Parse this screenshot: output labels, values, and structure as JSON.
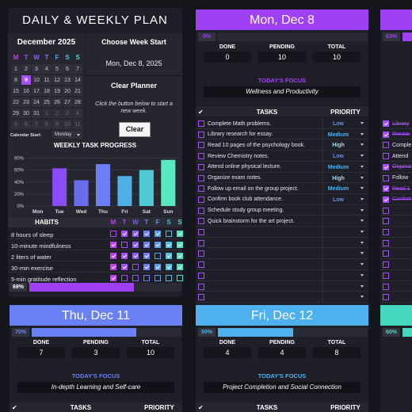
{
  "title": "DAILY & WEEKLY PLAN",
  "week_colors": [
    "#c040f0",
    "#a64dff",
    "#8a5cf5",
    "#6b7ff5",
    "#5a9cf0",
    "#4fc0e0",
    "#4fe0c0"
  ],
  "calendar": {
    "month": "December 2025",
    "weekdays": [
      "M",
      "T",
      "W",
      "T",
      "F",
      "S",
      "S"
    ],
    "highlight": 9,
    "weeks": [
      [
        1,
        2,
        3,
        4,
        5,
        6,
        7
      ],
      [
        8,
        9,
        10,
        11,
        12,
        13,
        14
      ],
      [
        15,
        16,
        17,
        18,
        19,
        20,
        21
      ],
      [
        22,
        23,
        24,
        25,
        26,
        27,
        28
      ],
      [
        29,
        30,
        31,
        1,
        2,
        3,
        4
      ],
      [
        5,
        6,
        7,
        8,
        9,
        10,
        11
      ]
    ],
    "start_label": "Calendar Start:",
    "start": "Monday"
  },
  "week_start": {
    "label": "Choose Week Start",
    "value": "Mon, Dec 8, 2025"
  },
  "clear": {
    "title": "Clear Planner",
    "note": "Click the button below to start a new week.",
    "button": "Clear"
  },
  "chart_data": {
    "type": "bar",
    "title": "WEEKLY TASK PROGRESS",
    "categories": [
      "Mon",
      "Tue",
      "Wed",
      "Thu",
      "Fri",
      "Sat",
      "Sun"
    ],
    "values": [
      0,
      63,
      43,
      70,
      50,
      60,
      77
    ],
    "colors": [
      "#9b3cf5",
      "#8a4cf5",
      "#6a6cf0",
      "#6a7ff5",
      "#4fb0e8",
      "#4fc8d8",
      "#5ae8c0"
    ],
    "ylim": [
      0,
      90
    ],
    "yticks": [
      {
        "value": 0,
        "label": "0%"
      },
      {
        "value": 20,
        "label": "20%"
      },
      {
        "value": 40,
        "label": "40%"
      },
      {
        "value": 60,
        "label": "60%"
      },
      {
        "value": 80,
        "label": "80%"
      }
    ],
    "grid": true
  },
  "habits": {
    "header": "HABITS",
    "days": [
      "M",
      "T",
      "W",
      "T",
      "F",
      "S",
      "S"
    ],
    "rows": [
      {
        "name": "8 hours of sleep",
        "checks": [
          false,
          true,
          true,
          true,
          true,
          false,
          true
        ]
      },
      {
        "name": "10-minute mindfulness",
        "checks": [
          true,
          false,
          true,
          true,
          true,
          true,
          true
        ]
      },
      {
        "name": "2 liters of water",
        "checks": [
          true,
          true,
          true,
          true,
          false,
          true,
          true
        ]
      },
      {
        "name": "30-min exercise",
        "checks": [
          true,
          true,
          false,
          true,
          true,
          true,
          true
        ]
      },
      {
        "name": "5-min gratitude reflection",
        "checks": [
          true,
          false,
          false,
          false,
          false,
          false,
          false
        ]
      }
    ],
    "progress": {
      "value": 69,
      "label": "69%"
    }
  },
  "priority_colors": {
    "Low": "#5a8cff",
    "Medium": "#4fb0f0",
    "High": "#8fe0ff"
  },
  "check_header": "✔",
  "days": [
    {
      "header": "Mon, Dec 8",
      "color": "#a040f5",
      "progress": {
        "value": 0,
        "label": "0%"
      },
      "stats": [
        {
          "label": "DONE",
          "value": 0
        },
        {
          "label": "PENDING",
          "value": 10
        },
        {
          "label": "TOTAL",
          "value": 10
        }
      ],
      "focus_label": "TODAY'S FOCUS",
      "focus": "Wellness and Productivity",
      "tasks_header": "TASKS",
      "priority_header": "PRIORITY",
      "tasks": [
        {
          "text": "Complete Math problems.",
          "priority": "Low",
          "done": false
        },
        {
          "text": "Library research for essay.",
          "priority": "Medium",
          "done": false
        },
        {
          "text": "Read 10 pages of the psychology book.",
          "priority": "High",
          "done": false
        },
        {
          "text": "Review Chemistry notes.",
          "priority": "Low",
          "done": false
        },
        {
          "text": "Attend online physical lecture.",
          "priority": "Medium",
          "done": false
        },
        {
          "text": "Organize exam notes.",
          "priority": "High",
          "done": false
        },
        {
          "text": "Follow up email on the group project.",
          "priority": "Medium",
          "done": false
        },
        {
          "text": "Confirm book club attendance.",
          "priority": "Low",
          "done": false
        },
        {
          "text": "Schedule study group meeting.",
          "done": false
        },
        {
          "text": "Quick brainstorm for the art project.",
          "done": false
        }
      ]
    },
    {
      "color": "#a040f5",
      "progress": {
        "value": 63,
        "label": "63%"
      },
      "tasks": [
        {
          "text": "Library",
          "done": true
        },
        {
          "text": "Resear",
          "done": true
        },
        {
          "text": "Comple",
          "done": false
        },
        {
          "text": "Attend",
          "done": false
        },
        {
          "text": "Organiz",
          "done": true
        },
        {
          "text": "Follow",
          "done": false
        },
        {
          "text": "Read 1",
          "done": true
        },
        {
          "text": "Confirm",
          "done": true
        }
      ]
    },
    {
      "header": "Thu, Dec 11",
      "color": "#6a80f5",
      "progress": {
        "value": 70,
        "label": "70%"
      },
      "stats": [
        {
          "label": "DONE",
          "value": 7
        },
        {
          "label": "PENDING",
          "value": 3
        },
        {
          "label": "TOTAL",
          "value": 10
        }
      ],
      "focus_label": "TODAY'S FOCUS",
      "focus": "In-depth Learning and Self-care",
      "tasks_header": "TASKS",
      "priority_header": "PRIORITY"
    },
    {
      "header": "Fri, Dec 12",
      "color": "#4fb0ee",
      "progress": {
        "value": 50,
        "label": "50%"
      },
      "stats": [
        {
          "label": "DONE",
          "value": 4
        },
        {
          "label": "PENDING",
          "value": 4
        },
        {
          "label": "TOTAL",
          "value": 8
        }
      ],
      "focus_label": "TODAY'S FOCUS",
      "focus": "Project Completion and Social Connection",
      "tasks_header": "TASKS",
      "priority_header": "PRIORITY"
    },
    {
      "color": "#45d6c0",
      "progress": {
        "value": 60,
        "label": "60%"
      }
    }
  ]
}
